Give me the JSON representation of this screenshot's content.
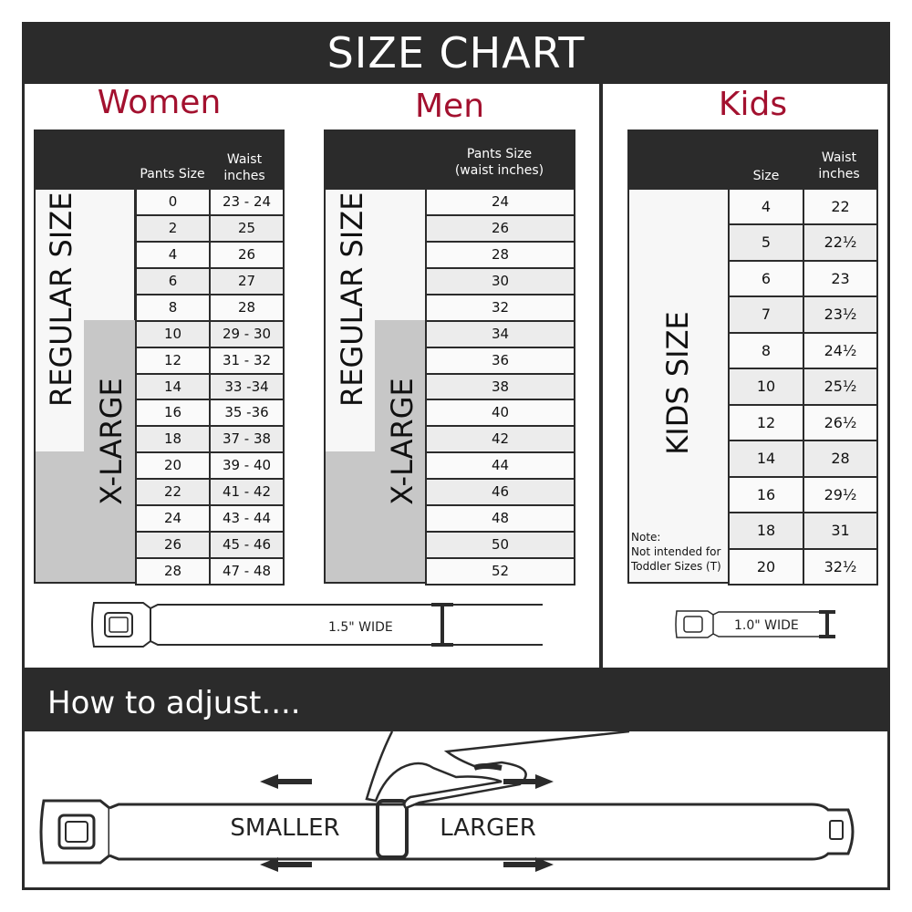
{
  "title": "SIZE CHART",
  "women": {
    "title": "Women",
    "col1": "Pants Size",
    "col2": "Waist inches",
    "regular_label": "REGULAR SIZE",
    "xlarge_label": "X-LARGE",
    "rows": [
      [
        "0",
        "23 - 24"
      ],
      [
        "2",
        "25"
      ],
      [
        "4",
        "26"
      ],
      [
        "6",
        "27"
      ],
      [
        "8",
        "28"
      ],
      [
        "10",
        "29 - 30"
      ],
      [
        "12",
        "31 - 32"
      ],
      [
        "14",
        "33 -34"
      ],
      [
        "16",
        "35 -36"
      ],
      [
        "18",
        "37 - 38"
      ],
      [
        "20",
        "39 - 40"
      ],
      [
        "22",
        "41 - 42"
      ],
      [
        "24",
        "43 - 44"
      ],
      [
        "26",
        "45 - 46"
      ],
      [
        "28",
        "47 - 48"
      ]
    ],
    "belt_width": "1.5\" WIDE"
  },
  "men": {
    "title": "Men",
    "col1": "Pants Size (waist inches)",
    "regular_label": "REGULAR SIZE",
    "xlarge_label": "X-LARGE",
    "rows": [
      "24",
      "26",
      "28",
      "30",
      "32",
      "34",
      "36",
      "38",
      "40",
      "42",
      "44",
      "46",
      "48",
      "50",
      "52"
    ]
  },
  "kids": {
    "title": "Kids",
    "col1": "Size",
    "col2": "Waist inches",
    "label": "KIDS SIZE",
    "note_title": "Note:",
    "note_body": "Not intended for Toddler Sizes (T)",
    "rows": [
      [
        "4",
        "22"
      ],
      [
        "5",
        "22½"
      ],
      [
        "6",
        "23"
      ],
      [
        "7",
        "23½"
      ],
      [
        "8",
        "24½"
      ],
      [
        "10",
        "25½"
      ],
      [
        "12",
        "26½"
      ],
      [
        "14",
        "28"
      ],
      [
        "16",
        "29½"
      ],
      [
        "18",
        "31"
      ],
      [
        "20",
        "32½"
      ]
    ],
    "belt_width": "1.0\" WIDE"
  },
  "adjust": {
    "title": "How to adjust....",
    "smaller": "SMALLER",
    "larger": "LARGER"
  },
  "colors": {
    "dark": "#2b2b2b",
    "accent": "#a3112f",
    "xlarge": "#c7c7c7"
  }
}
